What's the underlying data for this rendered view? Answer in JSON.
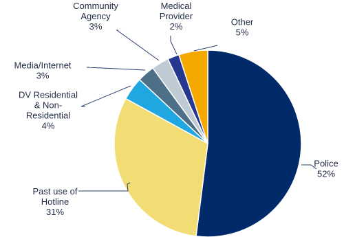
{
  "chart_data": {
    "type": "pie",
    "slices": [
      {
        "label": [
          "Police"
        ],
        "value": 52,
        "pct": "52%",
        "color": "#012a6b"
      },
      {
        "label": [
          "Past use of",
          "Hotline"
        ],
        "value": 31,
        "pct": "31%",
        "color": "#f2dc74"
      },
      {
        "label": [
          "DV Residential",
          "& Non-",
          "Residential"
        ],
        "value": 4,
        "pct": "4%",
        "color": "#1ea7e1"
      },
      {
        "label": [
          "Media/Internet"
        ],
        "value": 3,
        "pct": "3%",
        "color": "#4d7088"
      },
      {
        "label": [
          "Community",
          "Agency"
        ],
        "value": 3,
        "pct": "3%",
        "color": "#bfcbd4"
      },
      {
        "label": [
          "Medical",
          "Provider"
        ],
        "value": 2,
        "pct": "2%",
        "color": "#25378f"
      },
      {
        "label": [
          "Other"
        ],
        "value": 5,
        "pct": "5%",
        "color": "#f5a800"
      }
    ]
  }
}
